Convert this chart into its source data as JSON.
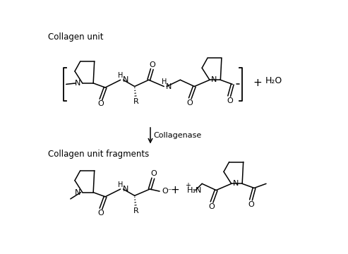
{
  "bg_color": "#ffffff",
  "line_color": "#000000",
  "text_color": "#000000",
  "title_top": "Collagen unit",
  "title_bottom": "Collagen unit fragments",
  "enzyme_label": "Collagenase",
  "water": "H₂O",
  "font_size_title": 8.5,
  "font_size_atom": 8.0,
  "font_size_small": 7.0
}
